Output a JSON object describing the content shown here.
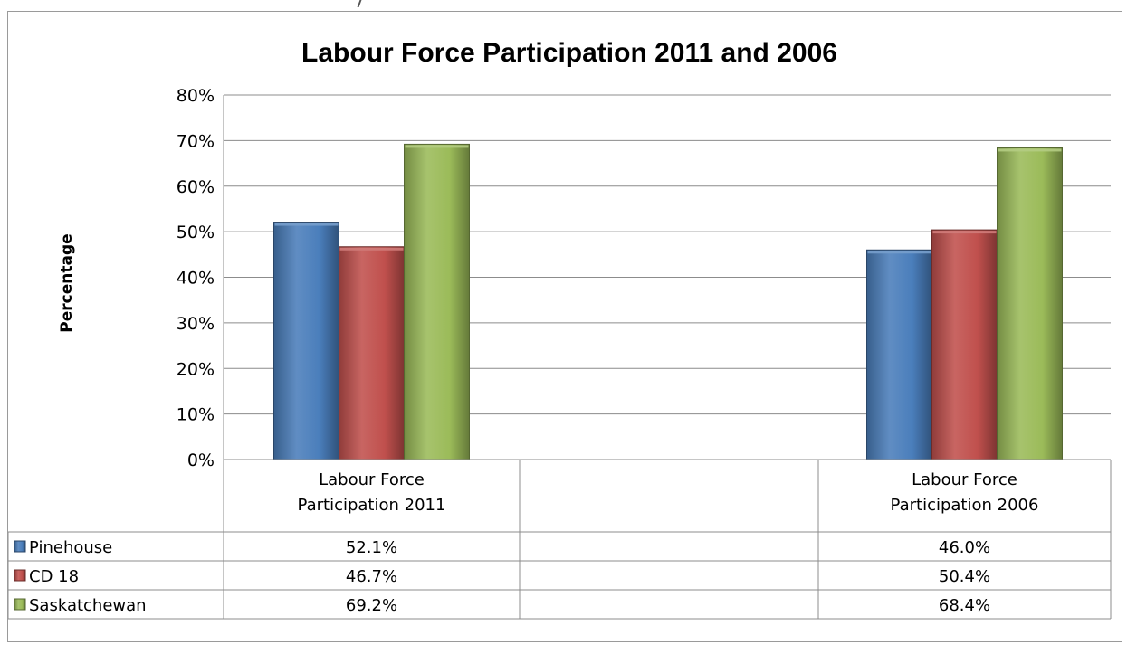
{
  "chart_data": {
    "type": "bar",
    "title": "Labour Force Participation 2011 and 2006",
    "ylabel": "Percentage",
    "xlabel": "",
    "ylim": [
      0,
      80
    ],
    "yticks": [
      "0%",
      "10%",
      "20%",
      "30%",
      "40%",
      "50%",
      "60%",
      "70%",
      "80%"
    ],
    "categories": [
      "Labour Force Participation 2011",
      "",
      "Labour Force Participation 2006"
    ],
    "category_lines": [
      [
        "Labour Force",
        "Participation 2011"
      ],
      [],
      [
        "Labour Force",
        "Participation 2006"
      ]
    ],
    "grid": true,
    "legend": "data-table",
    "series": [
      {
        "name": "Pinehouse",
        "color": "#4a7ebb",
        "values": [
          52.1,
          null,
          46.0
        ],
        "labels": [
          "52.1%",
          "",
          "46.0%"
        ]
      },
      {
        "name": "CD 18",
        "color": "#c0504d",
        "values": [
          46.7,
          null,
          50.4
        ],
        "labels": [
          "46.7%",
          "",
          "50.4%"
        ]
      },
      {
        "name": "Saskatchewan",
        "color": "#9bbb59",
        "values": [
          69.2,
          null,
          68.4
        ],
        "labels": [
          "69.2%",
          "",
          "68.4%"
        ]
      }
    ]
  }
}
